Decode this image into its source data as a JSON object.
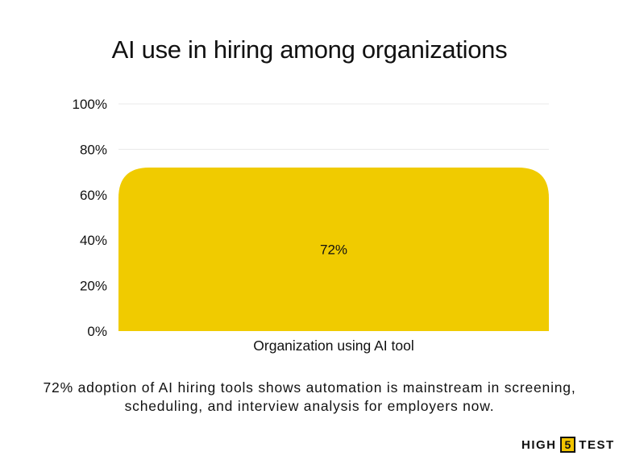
{
  "chart_data": {
    "type": "bar",
    "title": "AI use in hiring among organizations",
    "categories": [
      "Organization using AI tool"
    ],
    "values": [
      72
    ],
    "data_labels": [
      "72%"
    ],
    "ylim": [
      0,
      100
    ],
    "yticks": [
      "0%",
      "20%",
      "40%",
      "60%",
      "80%",
      "100%"
    ],
    "ytick_values": [
      0,
      20,
      40,
      60,
      80,
      100
    ],
    "grid": true,
    "bar_color": "#f0cb00",
    "grid_color": "#e8e8e8"
  },
  "caption": "72% adoption of AI hiring tools shows automation is mainstream in screening, scheduling, and interview analysis for employers now.",
  "logo": {
    "left": "HIGH",
    "number": "5",
    "right": "TEST",
    "accent": "#f2c400"
  }
}
